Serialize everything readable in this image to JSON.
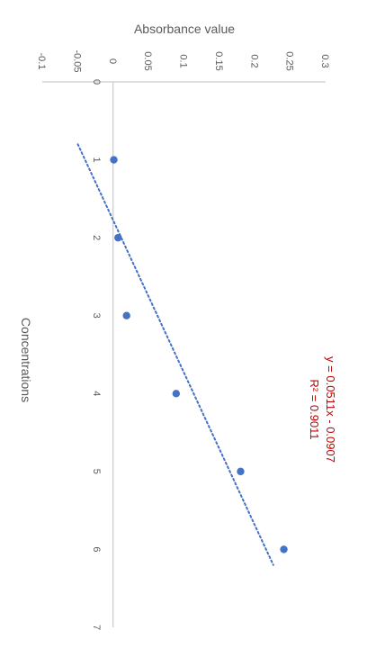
{
  "chart_data": {
    "type": "scatter",
    "orientation": "rotated-90",
    "xlabel": "Concentrations",
    "ylabel": "Absorbance value",
    "xlim": [
      0,
      7
    ],
    "ylim": [
      -0.1,
      0.3
    ],
    "x_ticks": [
      "0",
      "1",
      "2",
      "3",
      "4",
      "5",
      "6",
      "7"
    ],
    "y_ticks": [
      "-0.1",
      "-0.05",
      "0",
      "0.05",
      "0.1",
      "0.15",
      "0.2",
      "0.25",
      "0.3"
    ],
    "series": [
      {
        "x": [
          1,
          2,
          3,
          4,
          5,
          6
        ],
        "y": [
          0.001,
          0.007,
          0.019,
          0.089,
          0.18,
          0.241
        ]
      }
    ],
    "trendline": {
      "type": "linear",
      "slope": 0.0511,
      "intercept": -0.0907,
      "x_range": [
        0.8,
        6.2
      ],
      "equation": "y = 0.0511x - 0.0907",
      "r2": "R² = 0.9011"
    },
    "grid": false,
    "legend": "none",
    "colors": {
      "marker": "#4472C4",
      "trendline": "#4472C4",
      "equation": "#C00000",
      "axis": "#bfbfbf",
      "text": "#595959"
    }
  }
}
